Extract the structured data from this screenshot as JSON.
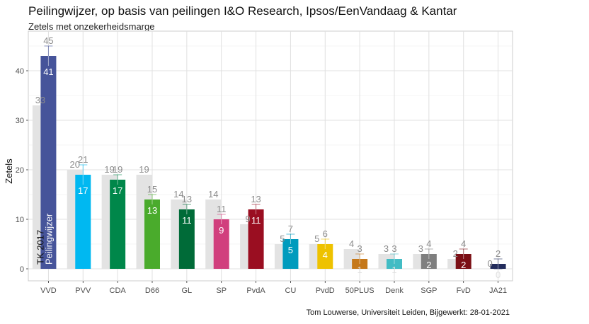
{
  "chart_data": {
    "type": "bar",
    "title": "Peilingwijzer, op basis van peilingen I&O Research, Ipsos/EenVandaag & Kantar",
    "subtitle": "Zetels met onzekerheidsmarge",
    "xlabel": "",
    "ylabel": "Zetels",
    "ylim": [
      -2.5,
      48
    ],
    "yticks": [
      0,
      10,
      20,
      30,
      40
    ],
    "grid": true,
    "caption": "Tom Louwerse, Universiteit Leiden, Bijgewerkt: 28-01-2021",
    "series_labels": {
      "tk2017": "TK 2017",
      "peiling": "Peilingwijzer"
    },
    "tk2017_color": "#e3e3e3",
    "categories": [
      "VVD",
      "PVV",
      "CDA",
      "D66",
      "GL",
      "SP",
      "PvdA",
      "CU",
      "PvdD",
      "50PLUS",
      "Denk",
      "SGP",
      "FvD",
      "JA21"
    ],
    "series": [
      {
        "name": "TK 2017",
        "values": [
          33,
          20,
          19,
          19,
          14,
          14,
          9,
          5,
          5,
          4,
          3,
          3,
          2,
          0
        ]
      },
      {
        "name": "Peilingwijzer",
        "values": [
          43,
          19,
          18,
          14,
          12,
          10,
          12,
          6,
          5,
          2,
          2,
          3,
          3,
          1
        ]
      }
    ],
    "lower": [
      41,
      17,
      17,
      13,
      11,
      9,
      11,
      5,
      4,
      1,
      1,
      2,
      2,
      0
    ],
    "upper": [
      45,
      21,
      19,
      15,
      13,
      11,
      13,
      7,
      6,
      3,
      3,
      4,
      4,
      2
    ],
    "colors": [
      "#46549a",
      "#00b8f1",
      "#00874a",
      "#4aab2c",
      "#006b38",
      "#d13f7d",
      "#9a0e21",
      "#009bbd",
      "#eec200",
      "#c5781a",
      "#42bcc4",
      "#7f7f7f",
      "#7b0f15",
      "#232c5c"
    ]
  }
}
